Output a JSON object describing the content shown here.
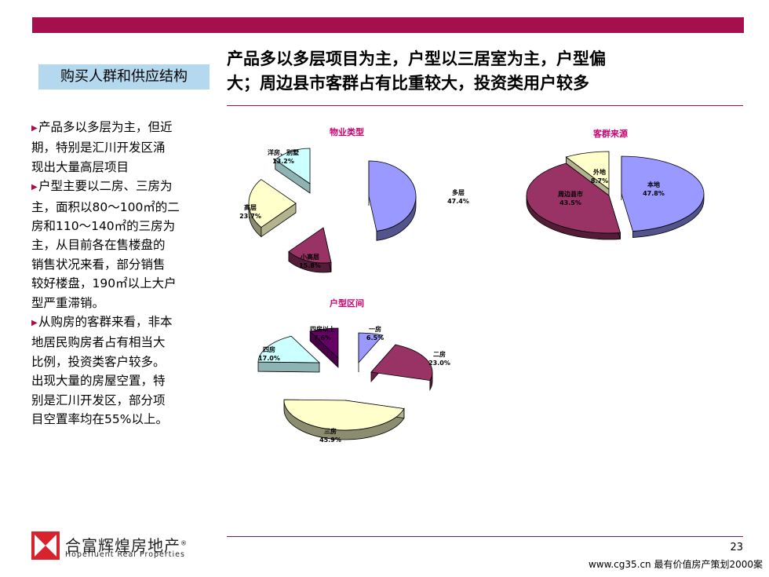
{
  "header": {
    "section_label": "购买人群和供应结构",
    "headline_line1": "产品多以多层项目为主，户型以三居室为主，户型偏",
    "headline_line2": "大；周边县市客群占有比重较大，投资类用户较多"
  },
  "bullets": {
    "b1": [
      "产品多以多层为主，但近",
      "期，特别是汇川开发区涌",
      "现出大量高层项目"
    ],
    "b2": [
      "户型主要以二房、三房为",
      "主，面积以80～100㎡的二",
      "房和110～140㎡的三房为",
      "主，从目前各在售楼盘的",
      "销售状况来看，部分销售",
      "较好楼盘，190㎡以上大户",
      "型严重滞销。"
    ],
    "b3": [
      "从购房的客群来看，非本",
      "地居民购房者占有相当大",
      "比例，投资类客户较多。",
      "出现大量的房屋空置，特",
      "别是汇川开发区，部分项",
      "目空置率均在55%以上。"
    ]
  },
  "logo": {
    "name_cn": "合富辉煌房地产",
    "registered_mark": "®",
    "name_en": "Hopefluent Real Properties",
    "color": "#d7232e"
  },
  "footer": {
    "page_number": "23",
    "source": "www.cg35.cn 最有价值房产策划2000案"
  },
  "colors": {
    "accent": "#a50f4b",
    "label_bg": "#b4d8ee",
    "chart_title": "#d0006f"
  },
  "chart_data": [
    {
      "type": "pie",
      "title": "物业类型",
      "slices": [
        {
          "name": "多层",
          "value": 47.4,
          "label": "47.4%",
          "color": "#9999ff"
        },
        {
          "name": "小高层",
          "value": 15.8,
          "label": "15.8%",
          "color": "#993366"
        },
        {
          "name": "高层",
          "value": 23.7,
          "label": "23.7%",
          "color": "#ffffcc"
        },
        {
          "name": "洋房、别墅",
          "value": 13.2,
          "label": "13.2%",
          "color": "#ccffff"
        }
      ]
    },
    {
      "type": "pie",
      "title": "客群来源",
      "slices": [
        {
          "name": "本地",
          "value": 47.8,
          "label": "47.8%",
          "color": "#9999ff"
        },
        {
          "name": "周边县市",
          "value": 43.5,
          "label": "43.5%",
          "color": "#993366"
        },
        {
          "name": "外地",
          "value": 8.7,
          "label": "8.7%",
          "color": "#ffffcc"
        }
      ]
    },
    {
      "type": "pie",
      "title": "户型区间",
      "slices": [
        {
          "name": "一房",
          "value": 6.5,
          "label": "6.5%",
          "color": "#9999ff"
        },
        {
          "name": "二房",
          "value": 23.0,
          "label": "23.0%",
          "color": "#993366"
        },
        {
          "name": "三房",
          "value": 45.9,
          "label": "45.9%",
          "color": "#ffffcc"
        },
        {
          "name": "四房",
          "value": 17.0,
          "label": "17.0%",
          "color": "#ccffff"
        },
        {
          "name": "四房以上",
          "value": 7.6,
          "label": "7.6%",
          "color": "#660066"
        }
      ]
    }
  ]
}
